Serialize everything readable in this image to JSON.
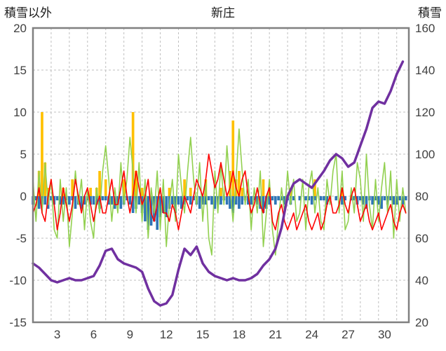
{
  "header": {
    "left_axis_title": "積雪以外",
    "chart_title": "新庄",
    "right_axis_title": "積雪"
  },
  "chart_data": {
    "type": "line",
    "title": "新庄",
    "left_axis": {
      "label": "積雪以外",
      "min": -15,
      "max": 20,
      "ticks": [
        -15,
        -10,
        -5,
        0,
        5,
        10,
        15,
        20
      ]
    },
    "right_axis": {
      "label": "積雪",
      "min": 20,
      "max": 160,
      "ticks": [
        20,
        40,
        60,
        80,
        100,
        120,
        140,
        160
      ]
    },
    "x_axis": {
      "min": 1,
      "max": 32,
      "tick_labels": [
        3,
        6,
        9,
        12,
        15,
        18,
        21,
        24,
        27,
        30
      ],
      "gridline_step": 1.5
    },
    "colors": {
      "grid": "#bfbfbf",
      "border": "#808080",
      "text": "#404040"
    },
    "series": [
      {
        "name": "orange-bars",
        "type": "bar",
        "axis": "left",
        "color": "#FFC000",
        "points_per_day": 4,
        "values": [
          0,
          0,
          3,
          10,
          4,
          1,
          0,
          0,
          0,
          0,
          1,
          0,
          0,
          2,
          0,
          0,
          0,
          0,
          0,
          1,
          0,
          1,
          3,
          0,
          2,
          0,
          0,
          0,
          0,
          0,
          2,
          0,
          0,
          10,
          3,
          0,
          1,
          0,
          0,
          0,
          0,
          0,
          0,
          0,
          0,
          1,
          0,
          0,
          0,
          0,
          2,
          0,
          1,
          0,
          0,
          0,
          0,
          2,
          0,
          0,
          0,
          0,
          1,
          0,
          0,
          3,
          9,
          2,
          3,
          1,
          0,
          0,
          0,
          0,
          0,
          0,
          2,
          0,
          1,
          0,
          0,
          0,
          0,
          0,
          0,
          1,
          0,
          0,
          0,
          0,
          0,
          0,
          0,
          2,
          0,
          0,
          0,
          0,
          0,
          0,
          0,
          0,
          1,
          0,
          0,
          0,
          0,
          0,
          0,
          0,
          0,
          0,
          0,
          0,
          0,
          0,
          0,
          0,
          0,
          0,
          0,
          0,
          0,
          0
        ]
      },
      {
        "name": "blue-bars",
        "type": "bar",
        "axis": "left",
        "color": "#2E75B6",
        "points_per_day": 4,
        "values": [
          -1,
          -0.5,
          -1.5,
          -1,
          -1,
          -1.5,
          -0.5,
          -1,
          -0.5,
          -1,
          -1,
          -0.5,
          -1,
          -0.5,
          -1.5,
          -1,
          -1.5,
          -1,
          -0.5,
          -1,
          -1,
          -1,
          -1.5,
          -0.5,
          -0.5,
          -1,
          -1,
          -1.5,
          -1,
          -1.5,
          -1,
          -0.5,
          -1,
          -2,
          -1.5,
          -1,
          -2,
          -3,
          -4,
          -3.5,
          -3,
          -4,
          -2.5,
          -2,
          -2.5,
          -1.5,
          -1,
          -2,
          -1,
          -1.5,
          -1,
          -0.5,
          -1,
          -0.5,
          -1,
          -1.5,
          -1,
          -1,
          -0.5,
          -1,
          -1.5,
          -1,
          -1,
          -0.5,
          -1,
          -1.5,
          -2,
          -1,
          -1.5,
          -1,
          -0.5,
          -1,
          -1,
          -0.5,
          -1,
          -1.5,
          -2,
          -1.5,
          -1,
          -0.5,
          -1,
          -0.5,
          -0.5,
          -1,
          -0.5,
          -1,
          -0.5,
          0,
          -0.5,
          0,
          -0.5,
          -0.5,
          -1,
          -0.5,
          0,
          -0.5,
          -0.5,
          -1,
          -0.5,
          0,
          -0.5,
          0,
          -1,
          -0.5,
          0,
          -0.5,
          -0.5,
          -1,
          -0.5,
          -1,
          -1.5,
          -0.5,
          -1,
          -0.5,
          -1,
          -1.5,
          -0.5,
          -1,
          -0.5,
          -1,
          -1,
          -0.5,
          -1,
          -0.5
        ]
      },
      {
        "name": "green-line",
        "type": "line",
        "axis": "left",
        "color": "#92D050",
        "width": 1.6,
        "points_per_day": 4,
        "values": [
          2,
          -3,
          3,
          -2,
          4,
          -1,
          2,
          -4,
          -5,
          2,
          -3,
          1,
          -6,
          -2,
          3,
          -1,
          2,
          -4,
          1,
          -3,
          -5,
          1,
          -2,
          3,
          6,
          2,
          -3,
          1,
          -2,
          4,
          -1,
          2,
          7,
          3,
          -2,
          4,
          -3,
          2,
          -5,
          1,
          -2,
          3,
          -4,
          2,
          -6,
          -1,
          2,
          -3,
          5,
          1,
          -2,
          3,
          7,
          2,
          -1,
          4,
          -3,
          2,
          -5,
          -7,
          3,
          -2,
          4,
          -1,
          6,
          1,
          -3,
          2,
          8,
          3,
          -1,
          2,
          -4,
          1,
          -2,
          3,
          -6,
          -2,
          2,
          -4,
          -7,
          -3,
          1,
          -2,
          3,
          -1,
          2,
          -3,
          -2,
          2,
          -4,
          1,
          3,
          -2,
          1,
          -3,
          -4,
          2,
          -1,
          3,
          5,
          -2,
          3,
          -4,
          -3,
          1,
          -2,
          4,
          2,
          -3,
          5,
          -1,
          -4,
          2,
          -3,
          1,
          4,
          -2,
          3,
          -5,
          2,
          -3,
          1,
          -2
        ]
      },
      {
        "name": "red-line",
        "type": "line",
        "axis": "left",
        "color": "#FF0000",
        "width": 1.6,
        "points_per_day": 4,
        "values": [
          -2,
          -1,
          1,
          -2,
          -3,
          0,
          2,
          -1,
          -4,
          -2,
          1,
          -1,
          -3,
          -1,
          2,
          0,
          -2,
          0,
          1,
          -1,
          -3,
          -1,
          0,
          -2,
          -2,
          0,
          2,
          -1,
          -1,
          1,
          3,
          0,
          -2,
          0,
          3,
          1,
          -1,
          0,
          2,
          -2,
          -3,
          -1,
          1,
          -2,
          -2,
          -3,
          -1,
          -2,
          -4,
          -2,
          0,
          -1,
          -2,
          0,
          2,
          1,
          0,
          2,
          5,
          3,
          1,
          2,
          4,
          2,
          0,
          1,
          3,
          1,
          0,
          2,
          3,
          0,
          -2,
          -1,
          1,
          -1,
          -2,
          0,
          1,
          -3,
          -4,
          -2,
          -1,
          -3,
          -4,
          -3,
          -2,
          -4,
          -3,
          -2,
          -1,
          -3,
          -4,
          -3,
          -2,
          -4,
          -3,
          -1,
          0,
          -2,
          -2,
          -1,
          1,
          -1,
          -2,
          0,
          1,
          -1,
          -3,
          -2,
          -1,
          -3,
          -4,
          -3,
          -2,
          -4,
          -3,
          -2,
          -1,
          -3,
          -4,
          -2,
          -1,
          -2
        ]
      },
      {
        "name": "purple-line-snow-depth",
        "type": "line",
        "axis": "right",
        "color": "#7030A0",
        "width": 3.5,
        "points_per_day": 2,
        "values": [
          48,
          46,
          43,
          40,
          39,
          40,
          41,
          40,
          40,
          41,
          42,
          47,
          54,
          55,
          50,
          48,
          47,
          46,
          44,
          36,
          30,
          28,
          29,
          33,
          45,
          55,
          52,
          56,
          48,
          44,
          42,
          41,
          40,
          41,
          40,
          40,
          41,
          43,
          47,
          50,
          55,
          65,
          80,
          86,
          88,
          86,
          84,
          88,
          92,
          97,
          100,
          98,
          94,
          96,
          104,
          112,
          122,
          125,
          124,
          130,
          138,
          144
        ]
      }
    ]
  }
}
